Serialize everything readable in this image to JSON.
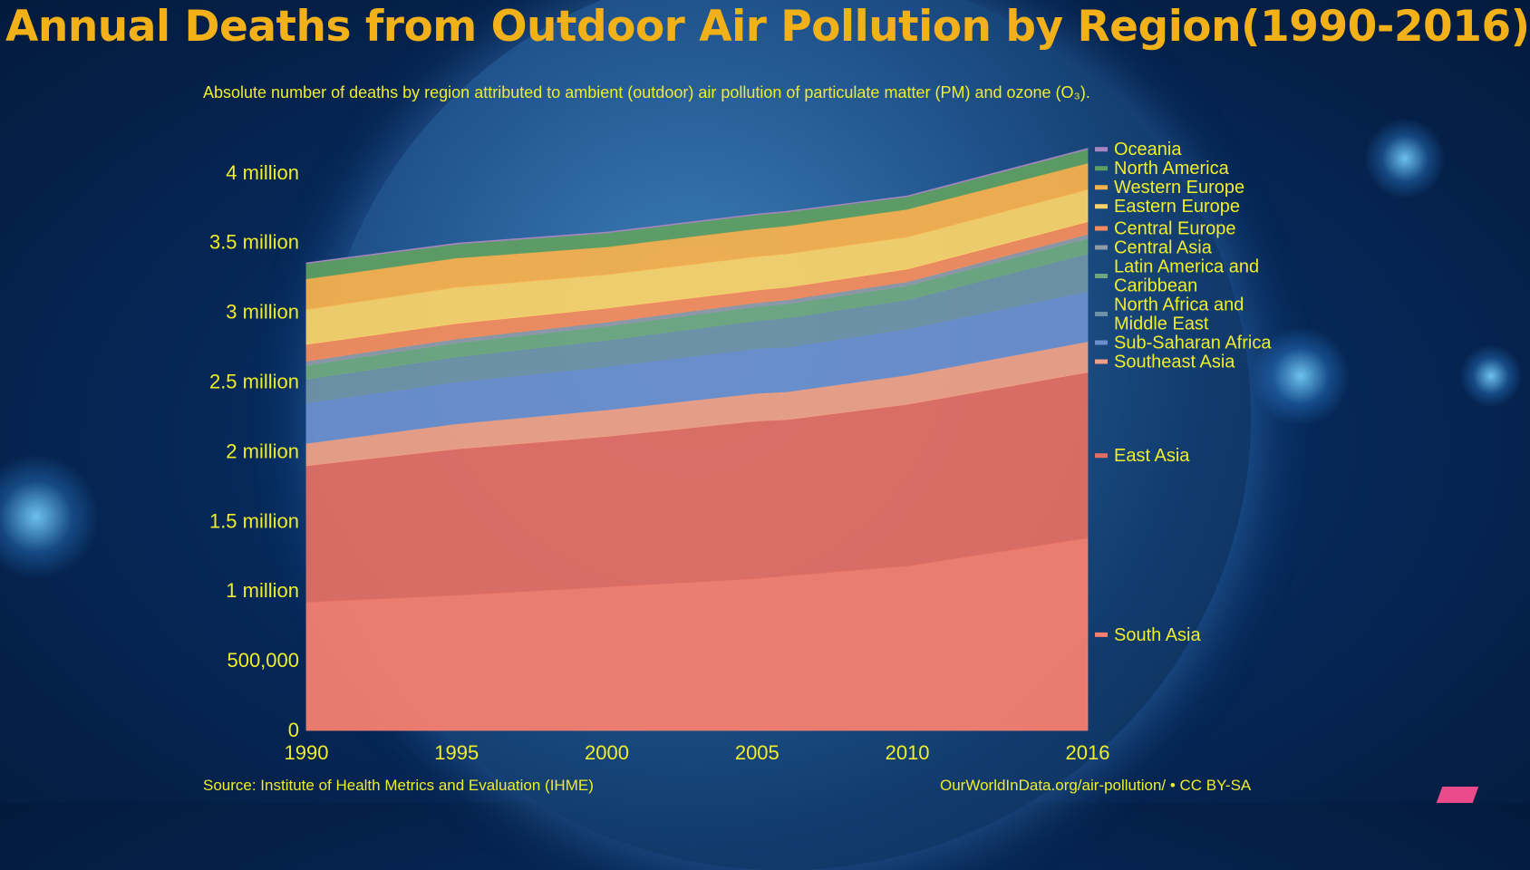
{
  "title": "Annual Deaths from Outdoor Air Pollution by Region(1990-2016)",
  "subtitle": "Absolute number of deaths by region attributed to ambient (outdoor) air pollution of particulate matter (PM) and ozone (O₃).",
  "source": "Source: Institute of Health Metrics and Evaluation (IHME)",
  "credit": "OurWorldInData.org/air-pollution/ • CC BY-SA",
  "colors": {
    "title": "#f2b019",
    "text": "#f0ee2a",
    "South Asia": "#f58070",
    "East Asia": "#e26f63",
    "Southeast Asia": "#eea085",
    "Sub-Saharan Africa": "#6b8fcc",
    "North Africa and Middle East": "#6f93a6",
    "Latin America and Caribbean": "#6fa880",
    "Central Asia": "#8e9aa8",
    "Central Europe": "#f38c5e",
    "Eastern Europe": "#f8d26a",
    "Western Europe": "#f5b04e",
    "North America": "#5f9e62",
    "Oceania": "#a784c2"
  },
  "chart_data": {
    "type": "area",
    "stacked": true,
    "x": [
      1990,
      1995,
      2000,
      2005,
      2006,
      2010,
      2016
    ],
    "xticks": [
      "1990",
      "1995",
      "2000",
      "2005",
      "2010",
      "2016"
    ],
    "xtick_values": [
      1990,
      1995,
      2000,
      2005,
      2010,
      2016
    ],
    "yticks": [
      "0",
      "500,000",
      "1 million",
      "1.5 million",
      "2 million",
      "2.5 million",
      "3 million",
      "3.5 million",
      "4 million"
    ],
    "ytick_values": [
      0,
      500000,
      1000000,
      1500000,
      2000000,
      2500000,
      3000000,
      3500000,
      4000000
    ],
    "ylim": [
      0,
      4200000
    ],
    "legend_position": "right",
    "series": [
      {
        "name": "South Asia",
        "values": [
          920000,
          970000,
          1030000,
          1090000,
          1110000,
          1180000,
          1380000
        ]
      },
      {
        "name": "East Asia",
        "values": [
          980000,
          1050000,
          1080000,
          1130000,
          1120000,
          1160000,
          1190000
        ]
      },
      {
        "name": "Southeast Asia",
        "values": [
          160000,
          180000,
          190000,
          200000,
          200000,
          210000,
          220000
        ]
      },
      {
        "name": "Sub-Saharan Africa",
        "values": [
          290000,
          300000,
          310000,
          320000,
          320000,
          330000,
          360000
        ]
      },
      {
        "name": "North Africa and Middle East",
        "values": [
          170000,
          180000,
          190000,
          200000,
          210000,
          210000,
          270000
        ]
      },
      {
        "name": "Latin America and Caribbean",
        "values": [
          100000,
          100000,
          100000,
          100000,
          100000,
          100000,
          110000
        ]
      },
      {
        "name": "Central Asia",
        "values": [
          30000,
          30000,
          30000,
          30000,
          30000,
          30000,
          30000
        ]
      },
      {
        "name": "Central Europe",
        "values": [
          120000,
          110000,
          100000,
          90000,
          90000,
          90000,
          90000
        ]
      },
      {
        "name": "Eastern Europe",
        "values": [
          250000,
          260000,
          240000,
          240000,
          240000,
          230000,
          230000
        ]
      },
      {
        "name": "Western Europe",
        "values": [
          220000,
          210000,
          200000,
          200000,
          200000,
          200000,
          190000
        ]
      },
      {
        "name": "North America",
        "values": [
          110000,
          100000,
          100000,
          100000,
          100000,
          90000,
          100000
        ]
      },
      {
        "name": "Oceania",
        "values": [
          5000,
          5000,
          5000,
          5000,
          5000,
          5000,
          5000
        ]
      }
    ],
    "legend": [
      {
        "key": "Oceania",
        "label": [
          "Oceania"
        ]
      },
      {
        "key": "North America",
        "label": [
          "North America"
        ]
      },
      {
        "key": "Western Europe",
        "label": [
          "Western Europe"
        ]
      },
      {
        "key": "Eastern Europe",
        "label": [
          "Eastern Europe"
        ]
      },
      {
        "key": "Central Europe",
        "label": [
          "Central Europe"
        ]
      },
      {
        "key": "Central Asia",
        "label": [
          "Central Asia"
        ]
      },
      {
        "key": "Latin America and Caribbean",
        "label": [
          "Latin America and",
          "Caribbean"
        ]
      },
      {
        "key": "North Africa and Middle East",
        "label": [
          "North Africa and",
          "Middle East"
        ]
      },
      {
        "key": "Sub-Saharan Africa",
        "label": [
          "Sub-Saharan Africa"
        ]
      },
      {
        "key": "Southeast Asia",
        "label": [
          "Southeast Asia"
        ]
      },
      {
        "key": "East Asia",
        "label": [
          "East Asia"
        ]
      },
      {
        "key": "South Asia",
        "label": [
          "South Asia"
        ]
      }
    ]
  }
}
